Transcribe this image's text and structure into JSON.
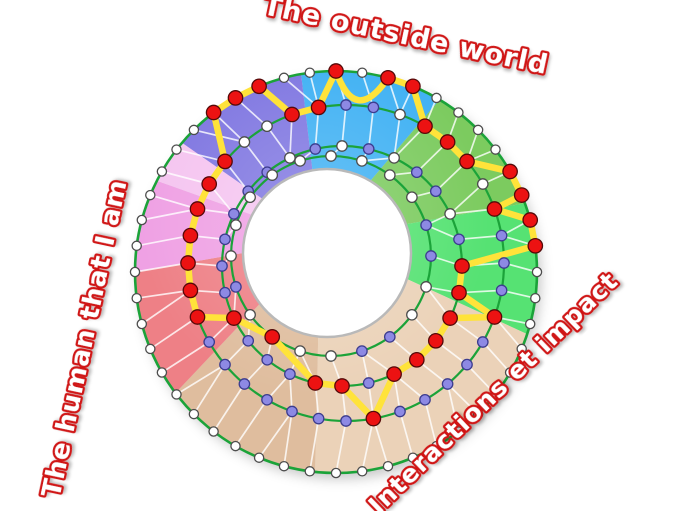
{
  "labels": {
    "outside_world": {
      "text": "The outside world"
    },
    "human": {
      "text": "The human that I am"
    },
    "interactions": {
      "text": "Interactions et impact"
    }
  },
  "label_style": {
    "stroke": "#d01212",
    "fill": "#ffffff"
  },
  "wheel": {
    "sectors": [
      {
        "name": "sky-blue",
        "color": "#3fb1f3",
        "start": -10,
        "end": 31
      },
      {
        "name": "olive-green",
        "color": "#7ccb5e",
        "start": 31,
        "end": 70
      },
      {
        "name": "bright-green",
        "color": "#57e273",
        "start": 70,
        "end": 108
      },
      {
        "name": "light-tan",
        "color": "#ebd2b8",
        "start": 108,
        "end": 186
      },
      {
        "name": "tan",
        "color": "#dfbd9e",
        "start": 186,
        "end": 233
      },
      {
        "name": "salmon-red",
        "color": "#ee8086",
        "start": 233,
        "end": 270
      },
      {
        "name": "pink",
        "color": "#efa1e4",
        "start": 270,
        "end": 297
      },
      {
        "name": "light-pink",
        "color": "#f5c5f0",
        "start": 297,
        "end": 310
      },
      {
        "name": "purple",
        "color": "#8077e1",
        "start": 310,
        "end": 350
      }
    ],
    "rings": [
      {
        "count": 48,
        "nodes": "r w r r w w w w r r r r w w w w w w w w w w w w w w w w w w w w w w w w w w w w w w w r r r w w"
      },
      {
        "count": 36,
        "nodes": "p p w r r r w r p p p r p p p p p r p p p p p p p r r r r r r r w w r r"
      },
      {
        "count": 28,
        "nodes": "w p w p p w p r r r r r r p r r p p p r p p p p p p w p"
      },
      {
        "count": 20,
        "nodes": "w w w w p p w w p p w w r w p w w w w w"
      }
    ],
    "score_path": [
      [
        0,
        0
      ],
      [
        0,
        2
      ],
      [
        0,
        3
      ],
      [
        1,
        3
      ],
      [
        1,
        4
      ],
      [
        1,
        5
      ],
      [
        0,
        8
      ],
      [
        0,
        9
      ],
      [
        1,
        7
      ],
      [
        0,
        10
      ],
      [
        0,
        11
      ],
      [
        2,
        7
      ],
      [
        2,
        8
      ],
      [
        1,
        11
      ],
      [
        2,
        9
      ],
      [
        2,
        10
      ],
      [
        2,
        11
      ],
      [
        2,
        12
      ],
      [
        1,
        17
      ],
      [
        2,
        14
      ],
      [
        2,
        15
      ],
      [
        3,
        12
      ],
      [
        2,
        19
      ],
      [
        1,
        25
      ],
      [
        1,
        26
      ],
      [
        1,
        27
      ],
      [
        1,
        28
      ],
      [
        1,
        29
      ],
      [
        1,
        30
      ],
      [
        1,
        31
      ],
      [
        0,
        43
      ],
      [
        0,
        44
      ],
      [
        0,
        45
      ],
      [
        1,
        34
      ],
      [
        1,
        35
      ]
    ],
    "arc_between": [
      0,
      1
    ],
    "node_colors": {
      "w": "#ffffff",
      "p": "#8d89e4",
      "r": "#ec1212"
    },
    "node_strokes": {
      "w": "#4d4d4d",
      "p": "#3c3c8e",
      "r": "#550909"
    },
    "path_color": "#ffe33a",
    "ring_line_color": "#1ba339",
    "mesh_color": "#ffffff",
    "hole_rim_color": "#b9b9b9"
  }
}
